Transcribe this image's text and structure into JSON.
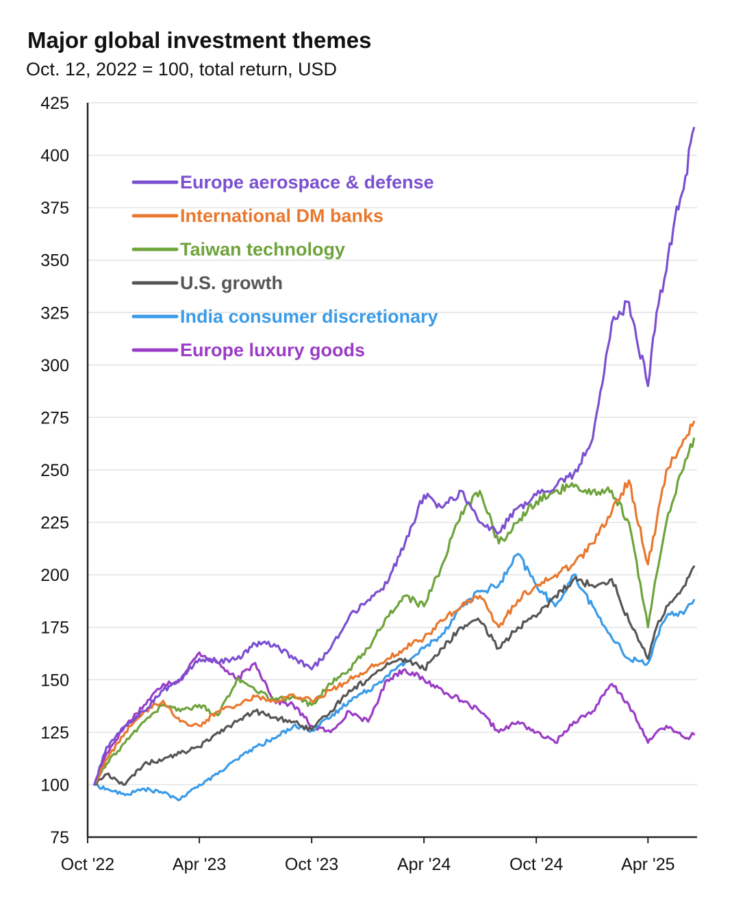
{
  "chart_data": {
    "type": "line",
    "title": "Major global investment themes",
    "subtitle": "Oct. 12, 2022 = 100, total return, USD",
    "xlabel": "",
    "ylabel": "",
    "ylim": [
      75,
      425
    ],
    "y_ticks": [
      75,
      100,
      125,
      150,
      175,
      200,
      225,
      250,
      275,
      300,
      325,
      350,
      375,
      400,
      425
    ],
    "x_range": [
      "2022-10-12",
      "2025-06-15"
    ],
    "x_ticks": [
      {
        "date": "2022-10-01",
        "label": "Oct '22"
      },
      {
        "date": "2023-04-01",
        "label": "Apr '23"
      },
      {
        "date": "2023-10-01",
        "label": "Oct '23"
      },
      {
        "date": "2024-04-01",
        "label": "Apr '24"
      },
      {
        "date": "2024-10-01",
        "label": "Oct '24"
      },
      {
        "date": "2025-04-01",
        "label": "Apr '25"
      }
    ],
    "grid": "horizontal",
    "legend_position": "top-left",
    "series": [
      {
        "name": "Europe aerospace & defense",
        "color": "#7b4fd0",
        "points": [
          [
            "2022-10-12",
            100
          ],
          [
            "2022-11-01",
            118
          ],
          [
            "2022-12-01",
            128
          ],
          [
            "2023-01-01",
            135
          ],
          [
            "2023-02-01",
            145
          ],
          [
            "2023-03-01",
            150
          ],
          [
            "2023-04-01",
            160
          ],
          [
            "2023-05-01",
            158
          ],
          [
            "2023-06-01",
            160
          ],
          [
            "2023-07-01",
            167
          ],
          [
            "2023-08-01",
            167
          ],
          [
            "2023-09-01",
            160
          ],
          [
            "2023-10-01",
            155
          ],
          [
            "2023-11-01",
            165
          ],
          [
            "2023-12-01",
            180
          ],
          [
            "2024-01-01",
            188
          ],
          [
            "2024-02-01",
            196
          ],
          [
            "2024-03-01",
            215
          ],
          [
            "2024-04-01",
            238
          ],
          [
            "2024-05-01",
            232
          ],
          [
            "2024-06-01",
            240
          ],
          [
            "2024-07-01",
            225
          ],
          [
            "2024-08-01",
            220
          ],
          [
            "2024-09-01",
            232
          ],
          [
            "2024-10-01",
            238
          ],
          [
            "2024-11-01",
            242
          ],
          [
            "2024-12-01",
            248
          ],
          [
            "2025-01-01",
            265
          ],
          [
            "2025-02-01",
            320
          ],
          [
            "2025-03-01",
            330
          ],
          [
            "2025-04-01",
            290
          ],
          [
            "2025-04-15",
            325
          ],
          [
            "2025-05-01",
            345
          ],
          [
            "2025-05-15",
            370
          ],
          [
            "2025-06-01",
            390
          ],
          [
            "2025-06-15",
            413
          ]
        ]
      },
      {
        "name": "International DM banks",
        "color": "#e8782e",
        "points": [
          [
            "2022-10-12",
            100
          ],
          [
            "2022-11-01",
            112
          ],
          [
            "2022-12-01",
            125
          ],
          [
            "2023-01-01",
            135
          ],
          [
            "2023-02-01",
            140
          ],
          [
            "2023-03-01",
            130
          ],
          [
            "2023-04-01",
            128
          ],
          [
            "2023-05-01",
            135
          ],
          [
            "2023-06-01",
            138
          ],
          [
            "2023-07-01",
            142
          ],
          [
            "2023-08-01",
            140
          ],
          [
            "2023-09-01",
            143
          ],
          [
            "2023-10-01",
            140
          ],
          [
            "2023-11-01",
            145
          ],
          [
            "2023-12-01",
            150
          ],
          [
            "2024-01-01",
            155
          ],
          [
            "2024-02-01",
            160
          ],
          [
            "2024-03-01",
            165
          ],
          [
            "2024-04-01",
            170
          ],
          [
            "2024-05-01",
            178
          ],
          [
            "2024-06-01",
            185
          ],
          [
            "2024-07-01",
            190
          ],
          [
            "2024-08-01",
            175
          ],
          [
            "2024-09-01",
            188
          ],
          [
            "2024-10-01",
            195
          ],
          [
            "2024-11-01",
            200
          ],
          [
            "2024-12-01",
            205
          ],
          [
            "2025-01-01",
            215
          ],
          [
            "2025-02-01",
            230
          ],
          [
            "2025-03-01",
            245
          ],
          [
            "2025-04-01",
            205
          ],
          [
            "2025-04-15",
            225
          ],
          [
            "2025-05-01",
            250
          ],
          [
            "2025-06-01",
            265
          ],
          [
            "2025-06-15",
            273
          ]
        ]
      },
      {
        "name": "Taiwan technology",
        "color": "#6ea33c",
        "points": [
          [
            "2022-10-12",
            100
          ],
          [
            "2022-11-01",
            110
          ],
          [
            "2022-12-01",
            120
          ],
          [
            "2023-01-01",
            130
          ],
          [
            "2023-02-01",
            138
          ],
          [
            "2023-03-01",
            135
          ],
          [
            "2023-04-01",
            138
          ],
          [
            "2023-05-01",
            133
          ],
          [
            "2023-06-01",
            150
          ],
          [
            "2023-07-01",
            145
          ],
          [
            "2023-08-01",
            140
          ],
          [
            "2023-09-01",
            142
          ],
          [
            "2023-10-01",
            138
          ],
          [
            "2023-11-01",
            148
          ],
          [
            "2023-12-01",
            155
          ],
          [
            "2024-01-01",
            165
          ],
          [
            "2024-02-01",
            180
          ],
          [
            "2024-03-01",
            190
          ],
          [
            "2024-04-01",
            185
          ],
          [
            "2024-05-01",
            205
          ],
          [
            "2024-06-01",
            230
          ],
          [
            "2024-07-01",
            240
          ],
          [
            "2024-08-01",
            215
          ],
          [
            "2024-09-01",
            225
          ],
          [
            "2024-10-01",
            235
          ],
          [
            "2024-11-01",
            240
          ],
          [
            "2024-12-01",
            242
          ],
          [
            "2025-01-01",
            240
          ],
          [
            "2025-02-01",
            240
          ],
          [
            "2025-03-01",
            225
          ],
          [
            "2025-04-01",
            175
          ],
          [
            "2025-04-15",
            200
          ],
          [
            "2025-05-01",
            225
          ],
          [
            "2025-06-01",
            255
          ],
          [
            "2025-06-15",
            265
          ]
        ]
      },
      {
        "name": "U.S. growth",
        "color": "#555555",
        "points": [
          [
            "2022-10-12",
            100
          ],
          [
            "2022-11-01",
            105
          ],
          [
            "2022-12-01",
            100
          ],
          [
            "2023-01-01",
            110
          ],
          [
            "2023-02-01",
            112
          ],
          [
            "2023-03-01",
            115
          ],
          [
            "2023-04-01",
            118
          ],
          [
            "2023-05-01",
            125
          ],
          [
            "2023-06-01",
            130
          ],
          [
            "2023-07-01",
            135
          ],
          [
            "2023-08-01",
            132
          ],
          [
            "2023-09-01",
            130
          ],
          [
            "2023-10-01",
            126
          ],
          [
            "2023-11-01",
            135
          ],
          [
            "2023-12-01",
            145
          ],
          [
            "2024-01-01",
            150
          ],
          [
            "2024-02-01",
            158
          ],
          [
            "2024-03-01",
            160
          ],
          [
            "2024-04-01",
            155
          ],
          [
            "2024-05-01",
            165
          ],
          [
            "2024-06-01",
            175
          ],
          [
            "2024-07-01",
            178
          ],
          [
            "2024-08-01",
            165
          ],
          [
            "2024-09-01",
            175
          ],
          [
            "2024-10-01",
            180
          ],
          [
            "2024-11-01",
            190
          ],
          [
            "2024-12-01",
            198
          ],
          [
            "2025-01-01",
            195
          ],
          [
            "2025-02-01",
            198
          ],
          [
            "2025-03-01",
            178
          ],
          [
            "2025-04-01",
            160
          ],
          [
            "2025-04-15",
            175
          ],
          [
            "2025-05-01",
            185
          ],
          [
            "2025-06-01",
            195
          ],
          [
            "2025-06-15",
            204
          ]
        ]
      },
      {
        "name": "India consumer discretionary",
        "color": "#3a9be8",
        "points": [
          [
            "2022-10-12",
            100
          ],
          [
            "2022-11-01",
            98
          ],
          [
            "2022-12-01",
            95
          ],
          [
            "2023-01-01",
            98
          ],
          [
            "2023-02-01",
            96
          ],
          [
            "2023-03-01",
            93
          ],
          [
            "2023-04-01",
            100
          ],
          [
            "2023-05-01",
            105
          ],
          [
            "2023-06-01",
            112
          ],
          [
            "2023-07-01",
            118
          ],
          [
            "2023-08-01",
            122
          ],
          [
            "2023-09-01",
            128
          ],
          [
            "2023-10-01",
            126
          ],
          [
            "2023-11-01",
            132
          ],
          [
            "2023-12-01",
            140
          ],
          [
            "2024-01-01",
            145
          ],
          [
            "2024-02-01",
            152
          ],
          [
            "2024-03-01",
            158
          ],
          [
            "2024-04-01",
            165
          ],
          [
            "2024-05-01",
            172
          ],
          [
            "2024-06-01",
            185
          ],
          [
            "2024-07-01",
            192
          ],
          [
            "2024-08-01",
            195
          ],
          [
            "2024-09-01",
            210
          ],
          [
            "2024-10-01",
            195
          ],
          [
            "2024-11-01",
            185
          ],
          [
            "2024-12-01",
            200
          ],
          [
            "2025-01-01",
            185
          ],
          [
            "2025-02-01",
            170
          ],
          [
            "2025-03-01",
            160
          ],
          [
            "2025-04-01",
            158
          ],
          [
            "2025-04-15",
            170
          ],
          [
            "2025-05-01",
            180
          ],
          [
            "2025-06-01",
            183
          ],
          [
            "2025-06-15",
            188
          ]
        ]
      },
      {
        "name": "Europe luxury goods",
        "color": "#9a3cc6",
        "points": [
          [
            "2022-10-12",
            100
          ],
          [
            "2022-11-01",
            115
          ],
          [
            "2022-12-01",
            128
          ],
          [
            "2023-01-01",
            138
          ],
          [
            "2023-02-01",
            148
          ],
          [
            "2023-03-01",
            150
          ],
          [
            "2023-04-01",
            163
          ],
          [
            "2023-05-01",
            158
          ],
          [
            "2023-06-01",
            150
          ],
          [
            "2023-07-01",
            158
          ],
          [
            "2023-08-01",
            140
          ],
          [
            "2023-09-01",
            138
          ],
          [
            "2023-10-01",
            128
          ],
          [
            "2023-11-01",
            125
          ],
          [
            "2023-12-01",
            135
          ],
          [
            "2024-01-01",
            130
          ],
          [
            "2024-02-01",
            150
          ],
          [
            "2024-03-01",
            155
          ],
          [
            "2024-04-01",
            150
          ],
          [
            "2024-05-01",
            145
          ],
          [
            "2024-06-01",
            140
          ],
          [
            "2024-07-01",
            135
          ],
          [
            "2024-08-01",
            125
          ],
          [
            "2024-09-01",
            130
          ],
          [
            "2024-10-01",
            125
          ],
          [
            "2024-11-01",
            120
          ],
          [
            "2024-12-01",
            130
          ],
          [
            "2025-01-01",
            135
          ],
          [
            "2025-02-01",
            148
          ],
          [
            "2025-03-01",
            138
          ],
          [
            "2025-04-01",
            120
          ],
          [
            "2025-04-15",
            125
          ],
          [
            "2025-05-01",
            128
          ],
          [
            "2025-06-01",
            122
          ],
          [
            "2025-06-15",
            124
          ]
        ]
      }
    ]
  }
}
